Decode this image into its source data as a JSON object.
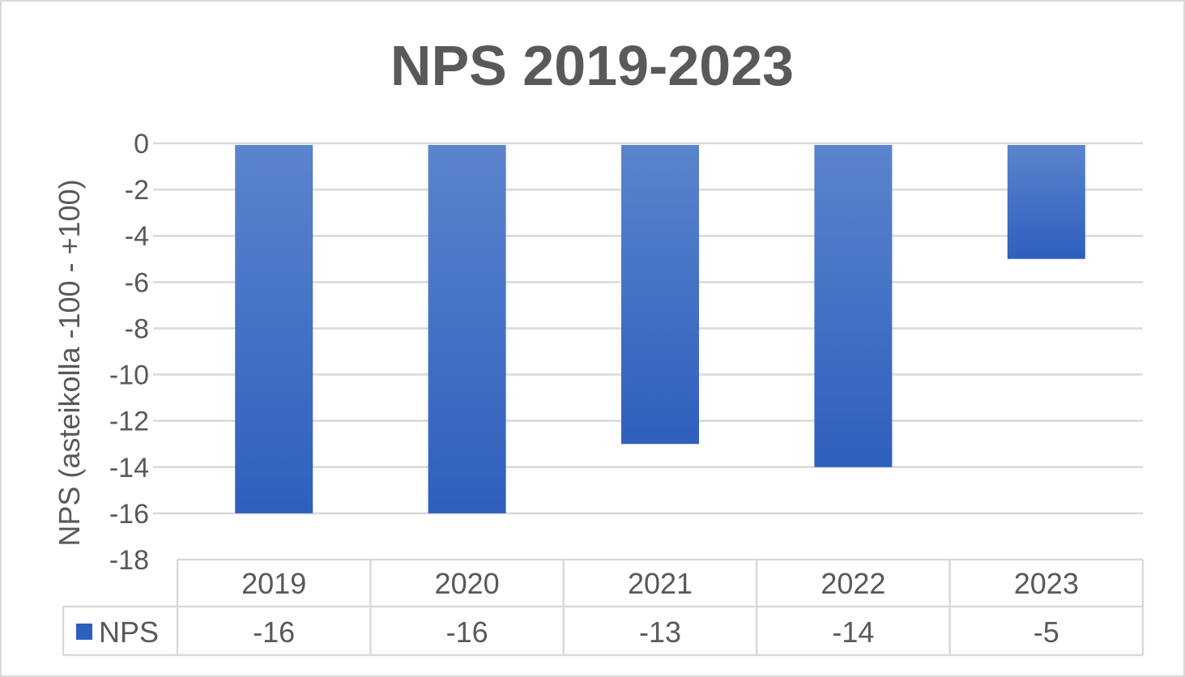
{
  "chart_data": {
    "type": "bar",
    "title": "NPS 2019-2023",
    "ylabel": "NPS (asteikolla -100 - +100)",
    "xlabel": "",
    "categories": [
      "2019",
      "2020",
      "2021",
      "2022",
      "2023"
    ],
    "series": [
      {
        "name": "NPS",
        "values": [
          -16,
          -16,
          -13,
          -14,
          -5
        ],
        "display": [
          "-16",
          "-16",
          "-13",
          "-14",
          "-5"
        ]
      }
    ],
    "yticks": [
      "0",
      "-2",
      "-4",
      "-6",
      "-8",
      "-10",
      "-12",
      "-14",
      "-16",
      "-18"
    ],
    "ylim": [
      -18,
      0
    ],
    "grid": true,
    "legend": "data-table",
    "colors": {
      "bar_top": "#5b84cc",
      "bar_bottom": "#2f5fbe",
      "text": "#595959",
      "grid": "#d9d9d9"
    }
  }
}
